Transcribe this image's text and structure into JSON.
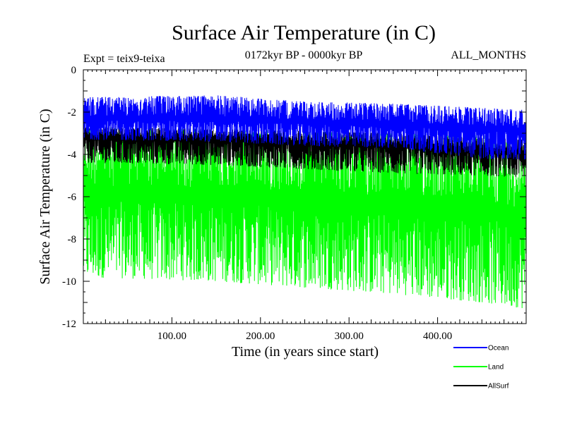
{
  "chart_data": {
    "type": "line",
    "title": "Surface Air Temperature (in C)",
    "subtitle_left": "Expt = teix9-teixa",
    "subtitle_center": "0172kyr BP - 0000kyr BP",
    "subtitle_right": "ALL_MONTHS",
    "xlabel": "Time (in years since start)",
    "ylabel": "Surface Air Temperature (in C)",
    "xlim": [
      0,
      500
    ],
    "ylim": [
      -12,
      0
    ],
    "xticks": [
      100,
      200,
      300,
      400
    ],
    "xtick_labels": [
      "100.00",
      "200.00",
      "300.00",
      "400.00"
    ],
    "yticks": [
      0,
      -2,
      -4,
      -6,
      -8,
      -10,
      -12
    ],
    "ytick_labels": [
      "0",
      "-2",
      "-4",
      "-6",
      "-8",
      "-10",
      "-12"
    ],
    "legend_position": "bottom-right",
    "series": [
      {
        "name": "Ocean",
        "color": "#0000ff",
        "mean_trend": [
          [
            0,
            -2.3
          ],
          [
            150,
            -2.3
          ],
          [
            250,
            -2.45
          ],
          [
            350,
            -2.55
          ],
          [
            450,
            -2.75
          ],
          [
            500,
            -2.85
          ]
        ],
        "range_trend": [
          [
            0,
            -3.3,
            -1.3
          ],
          [
            150,
            -3.4,
            -1.2
          ],
          [
            250,
            -3.6,
            -1.5
          ],
          [
            350,
            -3.7,
            -1.6
          ],
          [
            450,
            -4.2,
            -1.8
          ],
          [
            500,
            -4.3,
            -1.9
          ]
        ]
      },
      {
        "name": "Land",
        "color": "#00ff00",
        "mean_trend": [
          [
            0,
            -5.8
          ],
          [
            150,
            -5.9
          ],
          [
            250,
            -6.1
          ],
          [
            350,
            -6.3
          ],
          [
            450,
            -6.6
          ],
          [
            500,
            -6.9
          ]
        ],
        "range_trend": [
          [
            0,
            -9.8,
            -2.7
          ],
          [
            150,
            -10.0,
            -2.8
          ],
          [
            250,
            -10.3,
            -2.9
          ],
          [
            350,
            -10.6,
            -3.0
          ],
          [
            450,
            -11.0,
            -3.1
          ],
          [
            500,
            -11.3,
            -3.3
          ]
        ]
      },
      {
        "name": "AllSurf",
        "color": "#000000",
        "mean_trend": [
          [
            0,
            -3.2
          ],
          [
            150,
            -3.2
          ],
          [
            250,
            -3.4
          ],
          [
            350,
            -3.5
          ],
          [
            450,
            -3.8
          ],
          [
            500,
            -3.9
          ]
        ],
        "range_trend": [
          [
            0,
            -4.4,
            -2.7
          ],
          [
            150,
            -4.5,
            -2.8
          ],
          [
            250,
            -4.7,
            -2.9
          ],
          [
            350,
            -4.9,
            -3.0
          ],
          [
            450,
            -5.0,
            -3.2
          ],
          [
            500,
            -5.1,
            -3.3
          ]
        ]
      }
    ]
  }
}
